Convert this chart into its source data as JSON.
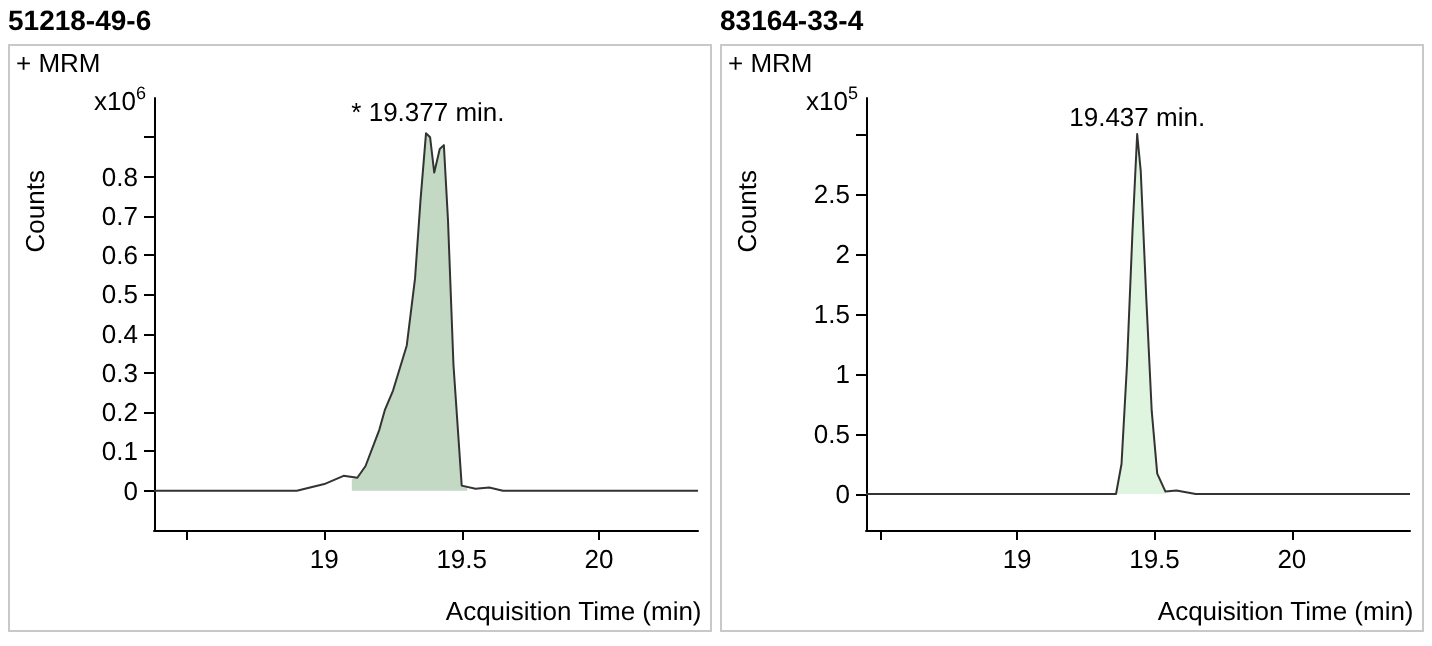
{
  "chart_data": [
    {
      "type": "line",
      "title": "51218-49-6",
      "xlabel": "Acquisition Time (min)",
      "ylabel": "Counts",
      "xlim": [
        18.38,
        20.36
      ],
      "xticks": [
        {
          "value": 18.5,
          "label": null
        },
        19,
        19.5,
        20
      ],
      "ylim": [
        -0.1,
        1.0
      ],
      "yticks": [
        0,
        0.1,
        0.2,
        0.3,
        0.4,
        0.5,
        0.6,
        0.7,
        0.8,
        {
          "value": 0.9,
          "label": null
        }
      ],
      "grid": false,
      "annotations": [
        "+ MRM",
        "x10$^{6}$",
        {
          "text": "* 19.377 min.",
          "x": 19.377,
          "y": 0.92
        }
      ],
      "series": [
        {
          "type": "area",
          "color": "#c3d9c3",
          "x": [
            19.1,
            19.12,
            19.15,
            19.2,
            19.22,
            19.25,
            19.3,
            19.33,
            19.35,
            19.37,
            19.385,
            19.4,
            19.42,
            19.435,
            19.45,
            19.47,
            19.5,
            19.52
          ],
          "values": [
            0.03,
            0.033,
            0.063,
            0.155,
            0.205,
            0.255,
            0.37,
            0.54,
            0.74,
            0.91,
            0.9,
            0.81,
            0.87,
            0.88,
            0.69,
            0.32,
            0.013,
            0.008
          ]
        },
        {
          "color": "#333333",
          "x": [
            18.38,
            18.9,
            19.0,
            19.07,
            19.12,
            19.15,
            19.2,
            19.22,
            19.25,
            19.3,
            19.33,
            19.35,
            19.37,
            19.385,
            19.4,
            19.42,
            19.435,
            19.45,
            19.47,
            19.5,
            19.55,
            19.6,
            19.65,
            20.36
          ],
          "values": [
            0,
            0,
            0.017,
            0.038,
            0.033,
            0.063,
            0.155,
            0.205,
            0.255,
            0.37,
            0.54,
            0.74,
            0.91,
            0.9,
            0.81,
            0.87,
            0.88,
            0.69,
            0.32,
            0.013,
            0.005,
            0.008,
            0,
            0
          ]
        }
      ]
    },
    {
      "type": "line",
      "title": "83164-33-4",
      "xlabel": "Acquisition Time (min)",
      "ylabel": "Counts",
      "xlim": [
        18.45,
        20.43
      ],
      "xticks": [
        {
          "value": 18.5,
          "label": null
        },
        19,
        19.5,
        20
      ],
      "ylim": [
        -0.3,
        3.3
      ],
      "yticks": [
        0,
        0.5,
        1,
        1.5,
        2,
        2.5,
        {
          "value": 3,
          "label": null
        }
      ],
      "grid": false,
      "annotations": [
        "+ MRM",
        "x10$^{5}$",
        {
          "text": "19.437 min.",
          "x": 19.437,
          "y": 3.0
        }
      ],
      "series": [
        {
          "type": "area",
          "color": "#dff5df",
          "x": [
            19.36,
            19.38,
            19.4,
            19.42,
            19.437,
            19.45,
            19.47,
            19.49,
            19.51,
            19.54
          ],
          "values": [
            0,
            0.25,
            1.08,
            2.19,
            3.0,
            2.69,
            1.64,
            0.69,
            0.17,
            0.02
          ]
        },
        {
          "color": "#333333",
          "x": [
            18.45,
            19.36,
            19.38,
            19.4,
            19.42,
            19.437,
            19.45,
            19.47,
            19.49,
            19.51,
            19.54,
            19.58,
            19.65,
            20.43
          ],
          "values": [
            0,
            0,
            0.25,
            1.08,
            2.19,
            3.0,
            2.69,
            1.64,
            0.69,
            0.17,
            0.02,
            0.03,
            0,
            0
          ]
        }
      ]
    }
  ]
}
